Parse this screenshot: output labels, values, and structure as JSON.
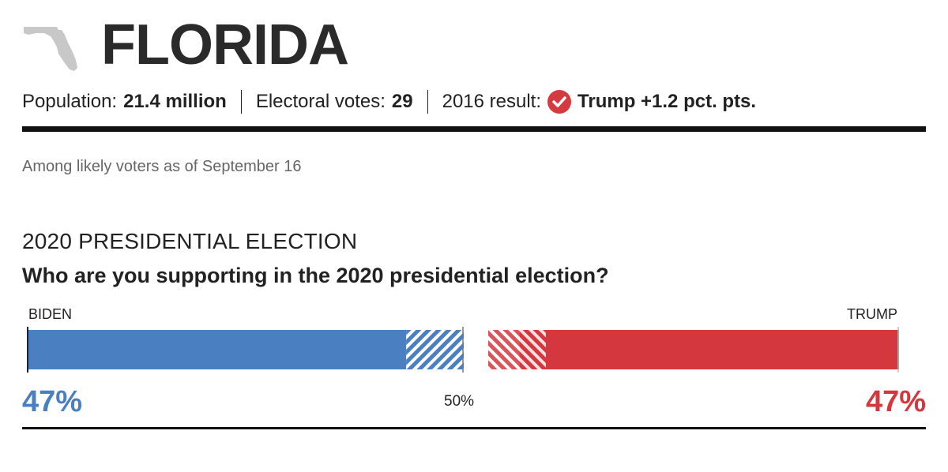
{
  "header": {
    "state": "FLORIDA"
  },
  "facts": {
    "population_label": "Population:",
    "population_value": "21.4 million",
    "electoral_label": "Electoral votes:",
    "electoral_value": "29",
    "result_label": "2016 result:",
    "result_value": "Trump +1.2 pct. pts."
  },
  "sample_note": "Among likely voters as of September 16",
  "section_title": "2020 PRESIDENTIAL ELECTION",
  "question": "Who are you supporting in the 2020 presidential election?",
  "colors": {
    "biden": "#4a7fc1",
    "trump": "#d4373d",
    "map": "#c8c8c8"
  },
  "chart_data": {
    "type": "bar",
    "orientation": "horizontal-stacked",
    "categories": [
      "BIDEN",
      "TRUMP"
    ],
    "values": [
      47,
      47
    ],
    "value_labels": [
      "47%",
      "47%"
    ],
    "xlim": [
      0,
      100
    ],
    "midpoint_label": "50%",
    "midpoint_value": 50,
    "margin_of_error_band": 3.5
  }
}
